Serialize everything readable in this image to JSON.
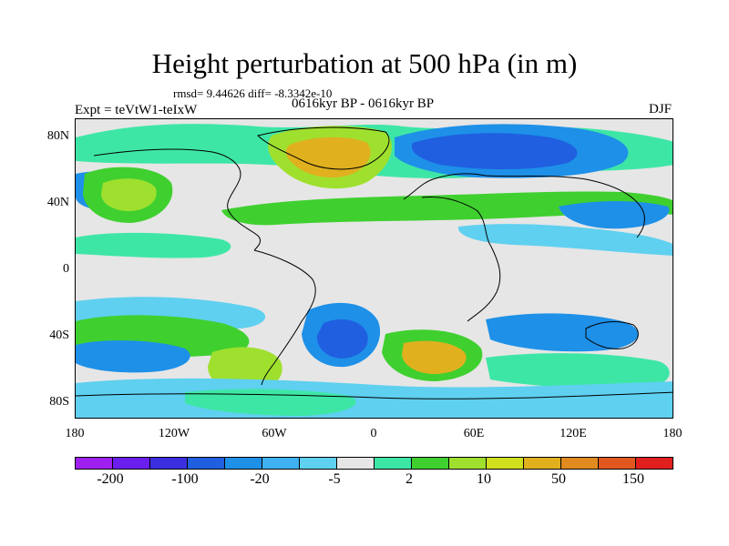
{
  "header": {
    "title": "Height perturbation at 500 hPa (in m)",
    "stats": "rmsd= 9.44626 diff= -8.3342e-10",
    "period": "0616kyr BP - 0616kyr BP",
    "experiment": "Expt = teVtW1-teIxW",
    "season": "DJF"
  },
  "axes": {
    "y_ticks": [
      "80N",
      "40N",
      "0",
      "40S",
      "80S"
    ],
    "x_ticks": [
      "180",
      "120W",
      "60W",
      "0",
      "60E",
      "120E",
      "180"
    ]
  },
  "colorbar": {
    "colors": [
      "#9f1fef",
      "#6a1fef",
      "#3b2fe0",
      "#1f5fe0",
      "#1e90e8",
      "#3fb0f0",
      "#5fd0f0",
      "#e6e6e6",
      "#3ee6a6",
      "#3fd02f",
      "#9fe02f",
      "#d0e01f",
      "#e0b01f",
      "#e08a1f",
      "#e0581f",
      "#e01f1f"
    ],
    "labels": [
      "-200",
      "-100",
      "-20",
      "-5",
      "2",
      "10",
      "50",
      "150"
    ]
  },
  "field_colors": {
    "neg_weak": "#5fd0f0",
    "neg_mid": "#1e90e8",
    "neg_strong": "#1f5fe0",
    "pos_weak": "#3ee6a6",
    "pos_mid": "#3fd02f",
    "pos_strong": "#9fe02f",
    "pos_high": "#e0b01f",
    "neutral": "#e6e6e6",
    "coast": "#000000"
  }
}
